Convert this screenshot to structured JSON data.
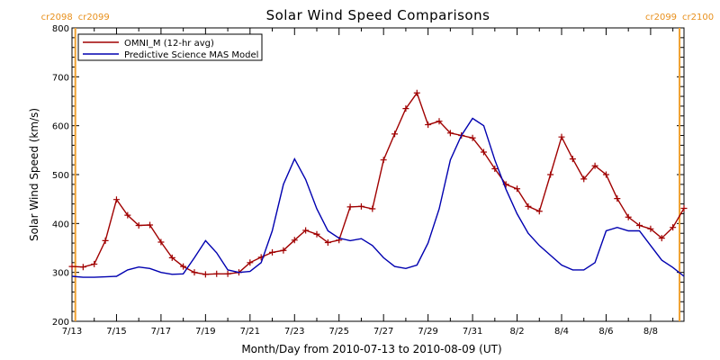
{
  "chart_data": {
    "type": "line",
    "title": "Solar Wind Speed Comparisons",
    "xlabel": "Month/Day from 2010-07-13 to 2010-08-09 (UT)",
    "ylabel": "Solar Wind Speed (km/s)",
    "xlim": [
      0,
      27.5
    ],
    "ylim": [
      200,
      800
    ],
    "yticks": [
      200,
      300,
      400,
      500,
      600,
      700,
      800
    ],
    "xticks": [
      {
        "day": 0,
        "label": "7/13"
      },
      {
        "day": 2,
        "label": "7/15"
      },
      {
        "day": 4,
        "label": "7/17"
      },
      {
        "day": 6,
        "label": "7/19"
      },
      {
        "day": 8,
        "label": "7/21"
      },
      {
        "day": 10,
        "label": "7/23"
      },
      {
        "day": 12,
        "label": "7/25"
      },
      {
        "day": 14,
        "label": "7/27"
      },
      {
        "day": 16,
        "label": "7/29"
      },
      {
        "day": 18,
        "label": "7/31"
      },
      {
        "day": 20,
        "label": "8/2"
      },
      {
        "day": 22,
        "label": "8/4"
      },
      {
        "day": 24,
        "label": "8/6"
      },
      {
        "day": 26,
        "label": "8/8"
      }
    ],
    "legend_position": "top-left",
    "grid": false,
    "carrington_markers": [
      {
        "day": 0.15,
        "label_left": "cr2098",
        "label_right": "cr2099"
      },
      {
        "day": 27.3,
        "label_left": "cr2099",
        "label_right": "cr2100"
      }
    ],
    "series": [
      {
        "name": "OMNI_M (12-hr avg)",
        "color": "#a00000",
        "markers": true,
        "x": [
          0.0,
          0.5,
          1.0,
          1.5,
          2.0,
          2.5,
          3.0,
          3.5,
          4.0,
          4.5,
          5.0,
          5.5,
          6.0,
          6.5,
          7.0,
          7.5,
          8.0,
          8.5,
          9.0,
          9.5,
          10.0,
          10.5,
          11.0,
          11.5,
          12.0,
          12.5,
          13.0,
          13.5,
          14.0,
          14.5,
          15.0,
          15.5,
          16.0,
          16.5,
          17.0,
          17.5,
          18.0,
          18.5,
          19.0,
          19.5,
          20.0,
          20.5,
          21.0,
          21.5,
          22.0,
          22.5,
          23.0,
          23.5,
          24.0,
          24.5,
          25.0,
          25.5,
          26.0,
          26.5,
          27.0,
          27.5
        ],
        "values": [
          312,
          311,
          317,
          365,
          449,
          417,
          396,
          397,
          362,
          330,
          312,
          300,
          296,
          297,
          297,
          300,
          320,
          331,
          341,
          345,
          366,
          386,
          378,
          361,
          366,
          434,
          435,
          430,
          530,
          583,
          635,
          667,
          602,
          609,
          585,
          580,
          575,
          546,
          512,
          480,
          471,
          435,
          425,
          500,
          577,
          532,
          491,
          518,
          500,
          451,
          413,
          396,
          389,
          370,
          392,
          431
        ]
      },
      {
        "name": "Predictive Science MAS Model",
        "color": "#0000b0",
        "markers": false,
        "x": [
          0.0,
          0.5,
          1.0,
          1.5,
          2.0,
          2.5,
          3.0,
          3.5,
          4.0,
          4.5,
          5.0,
          5.5,
          6.0,
          6.5,
          7.0,
          7.5,
          8.0,
          8.5,
          9.0,
          9.5,
          10.0,
          10.5,
          11.0,
          11.5,
          12.0,
          12.5,
          13.0,
          13.5,
          14.0,
          14.5,
          15.0,
          15.5,
          16.0,
          16.5,
          17.0,
          17.5,
          18.0,
          18.5,
          19.0,
          19.5,
          20.0,
          20.5,
          21.0,
          21.5,
          22.0,
          22.5,
          23.0,
          23.5,
          24.0,
          24.5,
          25.0,
          25.5,
          26.0,
          26.5,
          27.0,
          27.5
        ],
        "values": [
          292,
          290,
          290,
          291,
          292,
          305,
          311,
          308,
          300,
          296,
          297,
          330,
          365,
          340,
          305,
          300,
          302,
          320,
          385,
          480,
          532,
          490,
          430,
          385,
          370,
          365,
          369,
          355,
          330,
          312,
          308,
          315,
          360,
          430,
          530,
          580,
          615,
          600,
          530,
          470,
          420,
          380,
          355,
          335,
          315,
          305,
          305,
          320,
          385,
          392,
          385,
          385,
          355,
          325,
          310,
          292
        ]
      }
    ]
  }
}
